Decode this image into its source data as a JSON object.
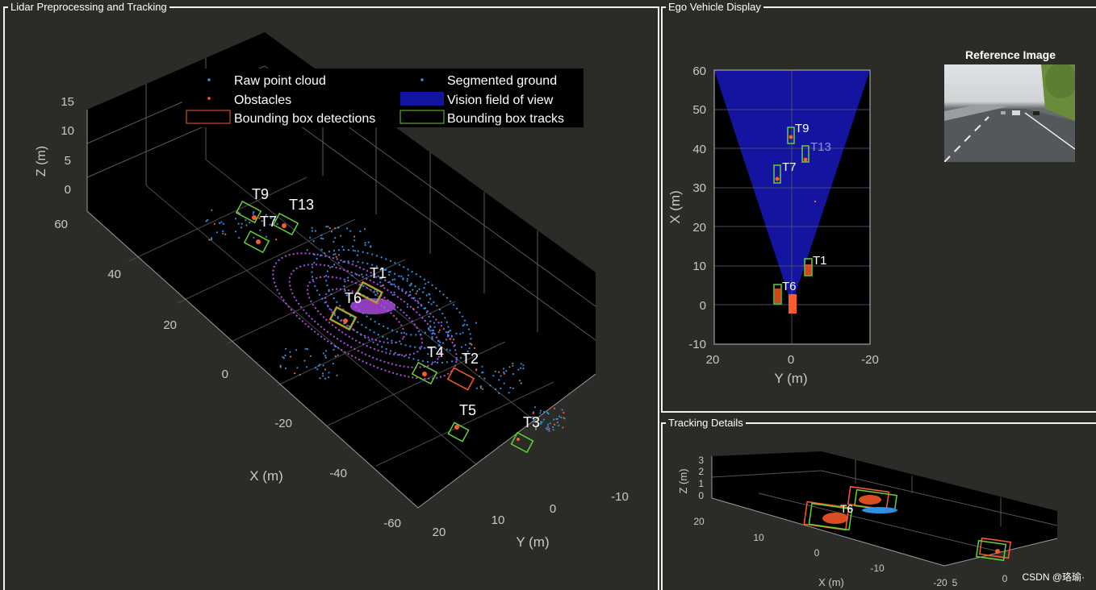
{
  "panels": {
    "lidar": "Lidar Preprocessing and Tracking",
    "ego": "Ego Vehicle Display",
    "tracking": "Tracking Details"
  },
  "legend": {
    "raw": "Raw point cloud",
    "ground": "Segmented ground",
    "obstacles": "Obstacles",
    "fov": "Vision field of view",
    "det": "Bounding box detections",
    "tracks": "Bounding box tracks"
  },
  "main_axes": {
    "zlabel": "Z (m)",
    "xlabel": "X (m)",
    "ylabel": "Y (m)",
    "z_ticks": [
      "15",
      "10",
      "5",
      "0"
    ],
    "x_ticks": [
      "60",
      "40",
      "20",
      "0",
      "-20",
      "-40",
      "-60"
    ],
    "y_ticks": [
      "20",
      "10",
      "0",
      "-10"
    ]
  },
  "main_tracks": [
    "T9",
    "T13",
    "T7",
    "T1",
    "T6",
    "T4",
    "T2",
    "T5",
    "T3"
  ],
  "ego": {
    "xlabel": "X (m)",
    "ylabel": "Y (m)",
    "x_ticks": [
      "60",
      "50",
      "40",
      "30",
      "20",
      "10",
      "0",
      "-10"
    ],
    "y_ticks": [
      "20",
      "0",
      "-20"
    ],
    "tracks": [
      "T9",
      "T13",
      "T7",
      "T1",
      "T6"
    ]
  },
  "reference": {
    "title": "Reference Image"
  },
  "details": {
    "zlabel": "Z (m)",
    "xlabel": "X (m)",
    "z_ticks": [
      "3",
      "2",
      "1",
      "0"
    ],
    "x_ticks": [
      "20",
      "10",
      "0",
      "-10",
      "-20"
    ],
    "y_ticks": [
      "5",
      "0"
    ],
    "track": "T6"
  },
  "watermark": "CSDN @珞瑜·",
  "colors": {
    "background": "#2b2b27",
    "raw": "#2f8fe0",
    "ground": "#b24de8",
    "obstacles": "#ff5a2a",
    "fov": "#1414a0",
    "detection_box": "#ff5a2a",
    "track_box": "#64d232"
  }
}
